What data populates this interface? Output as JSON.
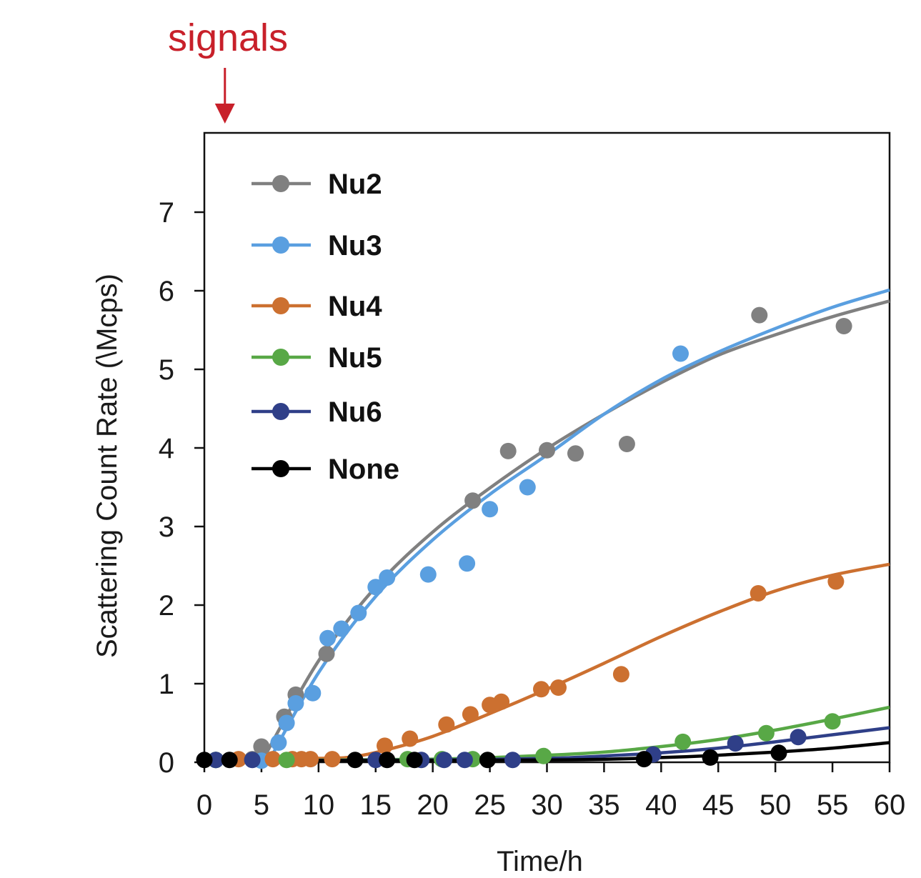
{
  "chart_data": {
    "type": "scatter",
    "title": "",
    "xlabel": "Time/h",
    "ylabel": "Scattering Count Rate (\\Mcps)",
    "xlim": [
      0,
      60
    ],
    "ylim": [
      0,
      7
    ],
    "x_ticks": [
      "0",
      "5",
      "10",
      "15",
      "20",
      "25",
      "30",
      "35",
      "40",
      "45",
      "50",
      "55",
      "60"
    ],
    "y_ticks": [
      "0",
      "1",
      "2",
      "3",
      "4",
      "5",
      "6",
      "7"
    ],
    "grid": false,
    "legend_position": "top-left",
    "annotation": {
      "text": "signals",
      "at_x": 1.8,
      "color": "#c8202a"
    },
    "series": [
      {
        "name": "Nu2",
        "color": "#808080",
        "points": [
          [
            1,
            0.03
          ],
          [
            4.2,
            0.04
          ],
          [
            5,
            0.2
          ],
          [
            7,
            0.58
          ],
          [
            8,
            0.86
          ],
          [
            10.7,
            1.38
          ],
          [
            23.5,
            3.33
          ],
          [
            26.6,
            3.96
          ],
          [
            30,
            3.97
          ],
          [
            32.5,
            3.93
          ],
          [
            37,
            4.05
          ],
          [
            48.6,
            5.69
          ],
          [
            56,
            5.55
          ]
        ],
        "fit": [
          [
            5.0,
            0.0
          ],
          [
            10,
            1.29
          ],
          [
            15,
            2.23
          ],
          [
            20,
            2.93
          ],
          [
            25,
            3.49
          ],
          [
            30,
            3.99
          ],
          [
            35,
            4.43
          ],
          [
            40,
            4.83
          ],
          [
            45,
            5.18
          ],
          [
            50,
            5.44
          ],
          [
            55,
            5.67
          ],
          [
            60,
            5.87
          ]
        ]
      },
      {
        "name": "Nu3",
        "color": "#5a9fe0",
        "points": [
          [
            1,
            0.03
          ],
          [
            5,
            0.02
          ],
          [
            6.5,
            0.25
          ],
          [
            7.2,
            0.5
          ],
          [
            8,
            0.75
          ],
          [
            9.5,
            0.88
          ],
          [
            10.8,
            1.58
          ],
          [
            12,
            1.7
          ],
          [
            13.5,
            1.9
          ],
          [
            15,
            2.23
          ],
          [
            16,
            2.35
          ],
          [
            19.6,
            2.39
          ],
          [
            23,
            2.53
          ],
          [
            25,
            3.22
          ],
          [
            28.3,
            3.5
          ],
          [
            41.7,
            5.2
          ]
        ],
        "fit": [
          [
            5.6,
            0.0
          ],
          [
            10,
            1.14
          ],
          [
            15,
            2.11
          ],
          [
            20,
            2.83
          ],
          [
            25,
            3.41
          ],
          [
            30,
            3.91
          ],
          [
            35,
            4.43
          ],
          [
            40,
            4.87
          ],
          [
            45,
            5.22
          ],
          [
            50,
            5.52
          ],
          [
            55,
            5.79
          ],
          [
            60,
            6.01
          ]
        ]
      },
      {
        "name": "Nu4",
        "color": "#cc7030",
        "points": [
          [
            3,
            0.04
          ],
          [
            6,
            0.04
          ],
          [
            7.7,
            0.04
          ],
          [
            8.5,
            0.04
          ],
          [
            9.3,
            0.04
          ],
          [
            11.2,
            0.04
          ],
          [
            15.8,
            0.21
          ],
          [
            18,
            0.3
          ],
          [
            21.2,
            0.48
          ],
          [
            23.3,
            0.61
          ],
          [
            25,
            0.73
          ],
          [
            26,
            0.77
          ],
          [
            29.5,
            0.93
          ],
          [
            31,
            0.95
          ],
          [
            36.5,
            1.12
          ],
          [
            48.5,
            2.15
          ],
          [
            55.3,
            2.3
          ]
        ],
        "fit": [
          [
            0,
            0.04
          ],
          [
            10,
            0.05
          ],
          [
            13,
            0.07
          ],
          [
            16,
            0.16
          ],
          [
            20,
            0.33
          ],
          [
            25,
            0.62
          ],
          [
            30,
            0.93
          ],
          [
            35,
            1.26
          ],
          [
            40,
            1.6
          ],
          [
            45,
            1.91
          ],
          [
            50,
            2.18
          ],
          [
            55,
            2.38
          ],
          [
            60,
            2.52
          ]
        ]
      },
      {
        "name": "Nu5",
        "color": "#58a846",
        "points": [
          [
            1,
            0.03
          ],
          [
            7.2,
            0.03
          ],
          [
            17.8,
            0.04
          ],
          [
            20.8,
            0.04
          ],
          [
            23.5,
            0.04
          ],
          [
            29.7,
            0.08
          ],
          [
            41.9,
            0.26
          ],
          [
            49.2,
            0.37
          ],
          [
            55,
            0.52
          ]
        ],
        "fit": [
          [
            0,
            0.02
          ],
          [
            20,
            0.04
          ],
          [
            30,
            0.09
          ],
          [
            35,
            0.13
          ],
          [
            40,
            0.2
          ],
          [
            45,
            0.29
          ],
          [
            50,
            0.41
          ],
          [
            55,
            0.55
          ],
          [
            60,
            0.7
          ]
        ]
      },
      {
        "name": "Nu6",
        "color": "#2f3f88",
        "points": [
          [
            1,
            0.03
          ],
          [
            4.2,
            0.03
          ],
          [
            15,
            0.03
          ],
          [
            19,
            0.03
          ],
          [
            21,
            0.03
          ],
          [
            22.8,
            0.03
          ],
          [
            27,
            0.03
          ],
          [
            39.3,
            0.1
          ],
          [
            46.5,
            0.24
          ],
          [
            52,
            0.32
          ]
        ],
        "fit": [
          [
            0,
            0.02
          ],
          [
            20,
            0.03
          ],
          [
            30,
            0.05
          ],
          [
            35,
            0.08
          ],
          [
            40,
            0.12
          ],
          [
            45,
            0.18
          ],
          [
            50,
            0.26
          ],
          [
            55,
            0.35
          ],
          [
            60,
            0.44
          ]
        ]
      },
      {
        "name": "None",
        "color": "#000000",
        "points": [
          [
            0,
            0.03
          ],
          [
            2.2,
            0.03
          ],
          [
            13.2,
            0.03
          ],
          [
            16,
            0.03
          ],
          [
            18.4,
            0.03
          ],
          [
            24.8,
            0.03
          ],
          [
            38.5,
            0.04
          ],
          [
            44.3,
            0.06
          ],
          [
            50.3,
            0.12
          ]
        ],
        "fit": [
          [
            0,
            0.02
          ],
          [
            30,
            0.03
          ],
          [
            40,
            0.06
          ],
          [
            45,
            0.09
          ],
          [
            50,
            0.13
          ],
          [
            55,
            0.18
          ],
          [
            60,
            0.25
          ]
        ]
      }
    ]
  }
}
